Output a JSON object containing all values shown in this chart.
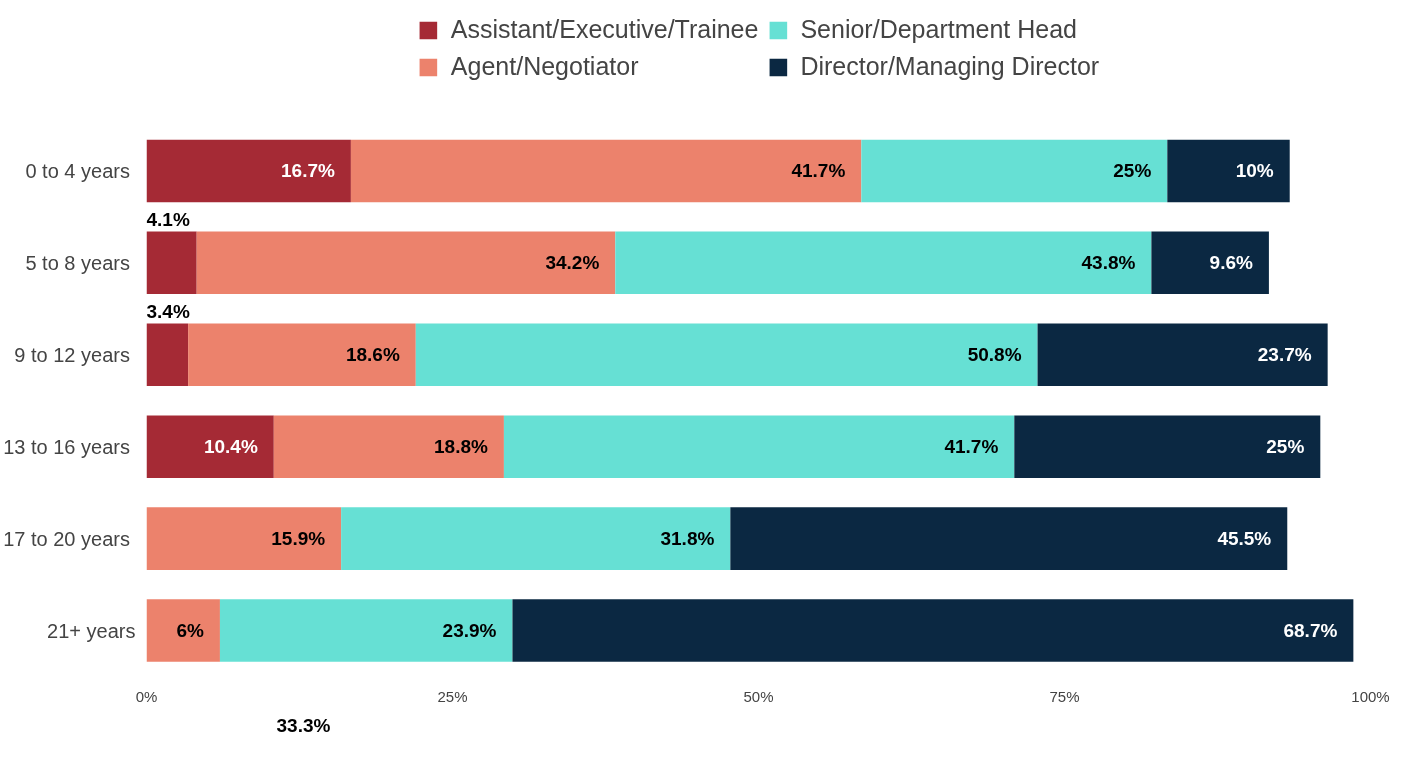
{
  "chart_data": {
    "type": "bar",
    "orientation": "horizontal",
    "stacked": true,
    "categories": [
      "0  to 4 years",
      "5  to 8 years",
      "9  to 12 years",
      "13  to 16 years",
      "17  to 20 years",
      "21+ years"
    ],
    "series": [
      {
        "name": "Assistant/Executive/Trainee",
        "color": "#a52a35",
        "values": [
          16.7,
          4.1,
          3.4,
          10.4,
          null,
          null
        ],
        "value_labels": [
          "16.7%",
          "4.1%",
          "3.4%",
          "10.4%",
          null,
          null
        ]
      },
      {
        "name": "Agent/Negotiator",
        "color": "#ec826c",
        "values": [
          41.7,
          34.2,
          18.6,
          18.8,
          15.9,
          6
        ],
        "value_labels": [
          "41.7%",
          "34.2%",
          "18.6%",
          "18.8%",
          "15.9%",
          "6%"
        ]
      },
      {
        "name": "Senior/Department Head",
        "color": "#66e0d4",
        "values": [
          25,
          43.8,
          50.8,
          41.7,
          31.8,
          23.9
        ],
        "value_labels": [
          "25%",
          "43.8%",
          "50.8%",
          "41.7%",
          "31.8%",
          "23.9%"
        ]
      },
      {
        "name": "Director/Managing Director",
        "color": "#0b2842",
        "values": [
          10,
          9.6,
          23.7,
          25,
          45.5,
          68.7
        ],
        "value_labels": [
          "10%",
          "9.6%",
          "23.7%",
          "25%",
          "45.5%",
          "68.7%"
        ]
      }
    ],
    "xlim": [
      0,
      100
    ],
    "xticks": [
      {
        "value": 0,
        "label": "0%"
      },
      {
        "value": 25,
        "label": "25%"
      },
      {
        "value": 50,
        "label": "50%"
      },
      {
        "value": 75,
        "label": "75%"
      },
      {
        "value": 100,
        "label": "100%"
      }
    ],
    "legend": "top",
    "annotations": [
      "33.3%"
    ]
  }
}
